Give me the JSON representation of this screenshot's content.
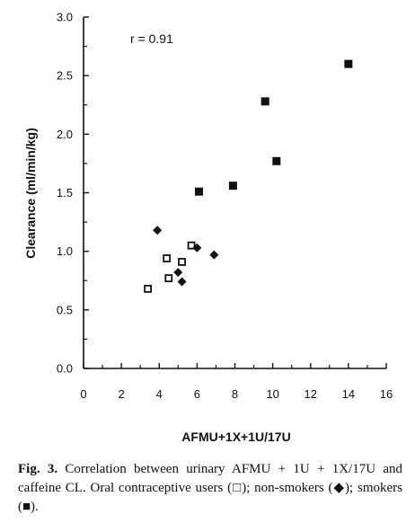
{
  "chart_data": {
    "type": "scatter",
    "title": "",
    "xlabel": "AFMU+1X+1U/17U",
    "ylabel": "Clearance (ml/min/kg)",
    "xlim": [
      0,
      16
    ],
    "ylim": [
      0.0,
      3.0
    ],
    "xticks": [
      "0",
      "2",
      "4",
      "6",
      "8",
      "10",
      "12",
      "14",
      "16"
    ],
    "yticks": [
      "0.0",
      "0.5",
      "1.0",
      "1.5",
      "2.0",
      "2.5",
      "3.0"
    ],
    "annotation": "r = 0.91",
    "grid": false,
    "series": [
      {
        "marker": "open-square",
        "points": [
          [
            3.4,
            0.68
          ],
          [
            4.4,
            0.94
          ],
          [
            4.5,
            0.77
          ],
          [
            5.2,
            0.91
          ],
          [
            5.7,
            1.05
          ]
        ]
      },
      {
        "marker": "filled-diamond",
        "points": [
          [
            3.9,
            1.18
          ],
          [
            5.0,
            0.82
          ],
          [
            5.2,
            0.74
          ],
          [
            6.0,
            1.03
          ],
          [
            6.9,
            0.97
          ]
        ]
      },
      {
        "marker": "filled-square",
        "points": [
          [
            6.1,
            1.51
          ],
          [
            7.9,
            1.56
          ],
          [
            9.6,
            2.28
          ],
          [
            10.2,
            1.77
          ],
          [
            14.0,
            2.6
          ]
        ]
      }
    ]
  },
  "caption": {
    "fig_label": "Fig. 3.",
    "text": "Correlation between urinary AFMU + 1U + 1X/17U and caffeine CL. Oral contraceptive users (□); non-smokers (◆); smokers (■)."
  }
}
